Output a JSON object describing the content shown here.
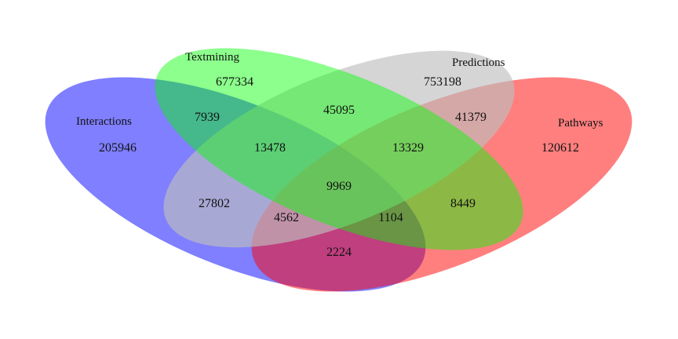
{
  "sets": [
    {
      "id": "interactions",
      "label": "Interactions",
      "color": "#0000ff",
      "opacity": 0.5
    },
    {
      "id": "pathways",
      "label": "Pathways",
      "color": "#ff0000",
      "opacity": 0.5
    },
    {
      "id": "predictions",
      "label": "Predictions",
      "color": "#bfbfbf",
      "opacity": 0.65
    },
    {
      "id": "textmining",
      "label": "Textmining",
      "color": "#00ff00",
      "opacity": 0.45
    }
  ],
  "regions": [
    {
      "id": "textmining-only",
      "count": "677334"
    },
    {
      "id": "predictions-only",
      "count": "753198"
    },
    {
      "id": "textmining-predictions",
      "count": "45095"
    },
    {
      "id": "interactions-textmining",
      "count": "7939"
    },
    {
      "id": "predictions-pathways",
      "count": "41379"
    },
    {
      "id": "interactions-only",
      "count": "205946"
    },
    {
      "id": "pathways-only",
      "count": "120612"
    },
    {
      "id": "interactions-textmining-predictions",
      "count": "13478"
    },
    {
      "id": "textmining-predictions-pathways",
      "count": "13329"
    },
    {
      "id": "all-four",
      "count": "9969"
    },
    {
      "id": "interactions-predictions",
      "count": "27802"
    },
    {
      "id": "textmining-pathways",
      "count": "8449"
    },
    {
      "id": "interactions-predictions-pathways",
      "count": "4562"
    },
    {
      "id": "interactions-textmining-pathways",
      "count": "1104"
    },
    {
      "id": "interactions-pathways",
      "count": "2224"
    }
  ]
}
